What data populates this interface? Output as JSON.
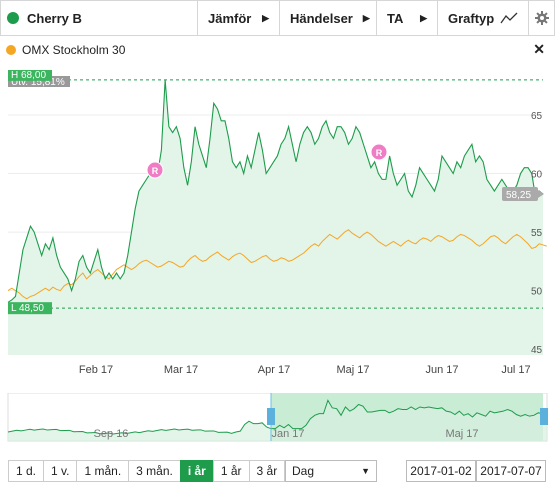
{
  "toolbar": {
    "instrument": "Cherry B",
    "instrument_color": "#1e9c4c",
    "compare": "Jämför",
    "events": "Händelser",
    "ta": "TA",
    "graph_type": "Graftyp"
  },
  "compare": {
    "name": "OMX Stockholm 30",
    "color": "#f5a623"
  },
  "labels": {
    "change": "Utv. 15,81%",
    "high": "H 68,00",
    "low": "L 48,50",
    "last": "58,25",
    "marker": "R"
  },
  "y_ticks": [
    "65",
    "60",
    "55",
    "50",
    "45"
  ],
  "x_ticks": [
    "Feb 17",
    "Mar 17",
    "Apr 17",
    "Maj 17",
    "Jun 17",
    "Jul 17"
  ],
  "nav_ticks": [
    "Sep 16",
    "Jan 17",
    "Maj 17"
  ],
  "range_buttons": [
    "1 d.",
    "1 v.",
    "1 mån.",
    "3 mån.",
    "i år",
    "1 år",
    "3 år"
  ],
  "active_range": "i år",
  "interval": "Dag",
  "date_from": "2017-01-02",
  "date_to": "2017-07-07",
  "chart_data": {
    "type": "line",
    "ylim": [
      44.5,
      68.5
    ],
    "high_value": 68.0,
    "low_value": 48.5,
    "series": [
      {
        "name": "Cherry B",
        "color": "#1e9c4c",
        "values": [
          49.0,
          49.2,
          49.5,
          51.5,
          53.5,
          54.5,
          55.5,
          55.0,
          54.0,
          53.0,
          54.0,
          53.5,
          54.5,
          53.0,
          52.0,
          51.5,
          51.0,
          50.0,
          51.0,
          52.5,
          53.0,
          52.0,
          51.5,
          52.5,
          53.5,
          52.0,
          51.0,
          51.5,
          51.0,
          51.5,
          51.0,
          51.5,
          53.0,
          55.0,
          57.0,
          58.5,
          59.0,
          59.5,
          60.0,
          60.5,
          60.0,
          62.0,
          68.0,
          64.0,
          63.5,
          64.0,
          63.0,
          60.5,
          59.0,
          61.0,
          64.0,
          62.5,
          61.5,
          60.5,
          63.0,
          66.0,
          65.5,
          64.5,
          64.5,
          63.0,
          61.0,
          60.5,
          61.0,
          60.0,
          61.5,
          60.5,
          62.0,
          63.5,
          62.0,
          60.0,
          60.5,
          61.0,
          61.5,
          62.5,
          63.0,
          64.0,
          62.5,
          61.0,
          62.5,
          63.5,
          64.0,
          63.5,
          62.5,
          63.0,
          64.0,
          64.5,
          63.5,
          63.0,
          64.0,
          64.0,
          63.5,
          62.5,
          63.0,
          64.0,
          63.5,
          62.5,
          61.5,
          60.5,
          61.0,
          60.0,
          59.5,
          59.5,
          61.5,
          60.0,
          59.0,
          59.5,
          60.0,
          58.5,
          58.0,
          59.0,
          60.5,
          60.0,
          59.5,
          59.0,
          58.5,
          59.5,
          61.5,
          61.0,
          60.5,
          60.0,
          61.0,
          60.5,
          61.5,
          62.0,
          62.5,
          61.0,
          61.5,
          61.0,
          59.5,
          59.0,
          58.5,
          59.0,
          59.5,
          59.0,
          58.5,
          58.5,
          59.0,
          60.0,
          60.5,
          60.5,
          60.0,
          58.0,
          58.5,
          58.25
        ]
      },
      {
        "name": "OMX Stockholm 30",
        "color": "#f5a623",
        "values": [
          50.0,
          50.2,
          50.0,
          49.8,
          49.5,
          49.3,
          49.5,
          49.6,
          49.8,
          50.0,
          50.2,
          50.0,
          50.3,
          50.1,
          50.0,
          50.4,
          50.6,
          50.5,
          50.8,
          51.2,
          51.5,
          51.0,
          51.3,
          51.6,
          51.8,
          51.5,
          51.2,
          51.0,
          51.4,
          51.8,
          52.0,
          52.2,
          52.0,
          51.8,
          52.0,
          52.3,
          52.5,
          52.6,
          52.4,
          52.2,
          52.0,
          52.1,
          52.3,
          52.5,
          52.4,
          52.2,
          52.0,
          52.1,
          52.5,
          52.8,
          53.0,
          52.7,
          52.5,
          52.6,
          52.9,
          53.1,
          53.3,
          53.0,
          52.8,
          52.6,
          52.9,
          53.1,
          53.2,
          53.0,
          52.7,
          52.4,
          52.5,
          52.7,
          52.9,
          53.0,
          52.7,
          52.5,
          52.6,
          52.8,
          52.7,
          52.5,
          52.6,
          52.8,
          53.0,
          53.2,
          53.5,
          53.8,
          54.0,
          53.8,
          54.2,
          54.5,
          54.8,
          54.6,
          54.4,
          54.7,
          55.0,
          55.2,
          54.9,
          54.7,
          54.5,
          54.8,
          55.0,
          54.8,
          54.5,
          54.2,
          54.0,
          53.8,
          54.0,
          54.2,
          54.0,
          53.8,
          54.1,
          54.3,
          54.1,
          54.0,
          54.3,
          54.5,
          54.4,
          54.2,
          54.5,
          54.7,
          54.6,
          54.4,
          54.2,
          54.3,
          54.6,
          54.8,
          54.7,
          54.5,
          54.3,
          54.0,
          53.8,
          54.0,
          54.3,
          54.6,
          54.7,
          54.5,
          54.2,
          54.0,
          54.3,
          54.6,
          54.8,
          54.6,
          54.3,
          54.0,
          53.6,
          53.7,
          54.0,
          53.9,
          53.8
        ]
      }
    ]
  }
}
